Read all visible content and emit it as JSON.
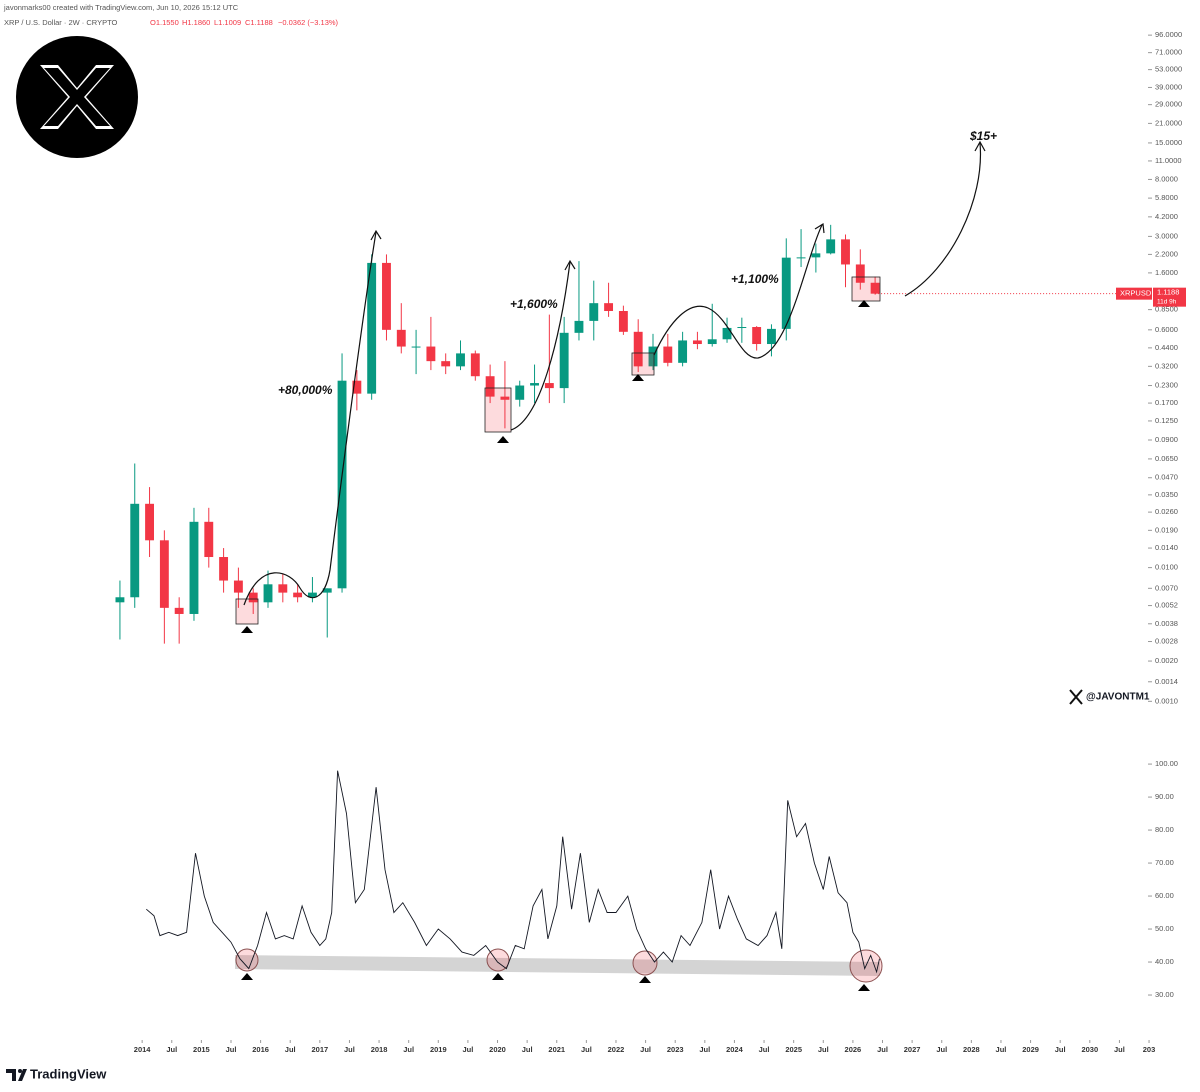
{
  "header": {
    "credit": "javonmarks00 created with TradingView.com, Jun 10, 2026 15:12 UTC",
    "symbol": "XRP / U.S. Dollar · 2W · CRYPTO",
    "ohlc": [
      "O1.1550",
      "H1.1860",
      "L1.1009",
      "C1.1188"
    ],
    "change": "−0.0362 (−3.13%)",
    "handle": "@JAVONTM1",
    "brand": "TradingView"
  },
  "chart_data": [
    {
      "type": "candlestick",
      "log_scale": true,
      "up_color": "#089981",
      "down_color": "#f23645",
      "annotations": [
        "+80,000%",
        "+1,600%",
        "+1,100%",
        "$15+"
      ],
      "price_label": {
        "symbol": "XRPUSD",
        "value": 1.1188,
        "label": "1.1188",
        "countdown": "11d 9h"
      },
      "xlim": [
        2011.6,
        2031.05
      ],
      "ylim": [
        0.00079,
        148
      ],
      "yticks": [
        {
          "value": 96,
          "label": "96.0000"
        },
        {
          "value": 71,
          "label": "71.0000"
        },
        {
          "value": 53,
          "label": "53.0000"
        },
        {
          "value": 39,
          "label": "39.0000"
        },
        {
          "value": 29,
          "label": "29.0000"
        },
        {
          "value": 21,
          "label": "21.0000"
        },
        {
          "value": 15,
          "label": "15.0000"
        },
        {
          "value": 11,
          "label": "11.0000"
        },
        {
          "value": 8,
          "label": "8.0000"
        },
        {
          "value": 5.8,
          "label": "5.8000"
        },
        {
          "value": 4.2,
          "label": "4.2000"
        },
        {
          "value": 3,
          "label": "3.0000"
        },
        {
          "value": 2.2,
          "label": "2.2000"
        },
        {
          "value": 1.6,
          "label": "1.6000"
        },
        {
          "value": 0.85,
          "label": "0.8500"
        },
        {
          "value": 0.6,
          "label": "0.6000"
        },
        {
          "value": 0.44,
          "label": "0.4400"
        },
        {
          "value": 0.32,
          "label": "0.3200"
        },
        {
          "value": 0.23,
          "label": "0.2300"
        },
        {
          "value": 0.17,
          "label": "0.1700"
        },
        {
          "value": 0.125,
          "label": "0.1250"
        },
        {
          "value": 0.09,
          "label": "0.0900"
        },
        {
          "value": 0.065,
          "label": "0.0650"
        },
        {
          "value": 0.047,
          "label": "0.0470"
        },
        {
          "value": 0.035,
          "label": "0.0350"
        },
        {
          "value": 0.026,
          "label": "0.0260"
        },
        {
          "value": 0.019,
          "label": "0.0190"
        },
        {
          "value": 0.014,
          "label": "0.0140"
        },
        {
          "value": 0.01,
          "label": "0.0100"
        },
        {
          "value": 0.007,
          "label": "0.0070"
        },
        {
          "value": 0.0052,
          "label": "0.0052"
        },
        {
          "value": 0.0038,
          "label": "0.0038"
        },
        {
          "value": 0.0028,
          "label": "0.0028"
        },
        {
          "value": 0.002,
          "label": "0.0020"
        },
        {
          "value": 0.0014,
          "label": "0.0014"
        },
        {
          "value": 0.001,
          "label": "0.0010"
        }
      ],
      "x": [
        2013.625,
        2013.875,
        2014.125,
        2014.375,
        2014.625,
        2014.875,
        2015.125,
        2015.375,
        2015.625,
        2015.875,
        2016.125,
        2016.375,
        2016.625,
        2016.875,
        2017.125,
        2017.375,
        2017.625,
        2017.875,
        2018.125,
        2018.375,
        2018.625,
        2018.875,
        2019.125,
        2019.375,
        2019.625,
        2019.875,
        2020.125,
        2020.375,
        2020.625,
        2020.875,
        2021.125,
        2021.375,
        2021.625,
        2021.875,
        2022.125,
        2022.375,
        2022.625,
        2022.875,
        2023.125,
        2023.375,
        2023.625,
        2023.875,
        2024.125,
        2024.375,
        2024.625,
        2024.875,
        2025.125,
        2025.375,
        2025.625,
        2025.875,
        2026.125,
        2026.375
      ],
      "open": [
        0.0055,
        0.006,
        0.03,
        0.016,
        0.005,
        0.0045,
        0.022,
        0.012,
        0.008,
        0.0065,
        0.0055,
        0.0075,
        0.0065,
        0.006,
        0.0065,
        0.007,
        0.25,
        0.2,
        1.9,
        0.6,
        0.45,
        0.45,
        0.35,
        0.32,
        0.4,
        0.27,
        0.19,
        0.18,
        0.23,
        0.24,
        0.22,
        0.57,
        0.7,
        0.95,
        0.83,
        0.58,
        0.32,
        0.45,
        0.34,
        0.5,
        0.47,
        0.51,
        0.62,
        0.63,
        0.47,
        0.61,
        2.08,
        2.09,
        2.24,
        2.85,
        1.85,
        1.35
      ],
      "high": [
        0.008,
        0.06,
        0.04,
        0.019,
        0.006,
        0.028,
        0.028,
        0.014,
        0.01,
        0.007,
        0.0095,
        0.009,
        0.0075,
        0.0085,
        0.007,
        0.4,
        0.3,
        2.2,
        2.2,
        0.95,
        0.6,
        0.75,
        0.4,
        0.5,
        0.42,
        0.33,
        0.35,
        0.25,
        0.33,
        0.78,
        0.75,
        1.96,
        1.4,
        1.35,
        0.91,
        0.72,
        0.56,
        0.56,
        0.58,
        0.58,
        0.94,
        0.74,
        0.74,
        0.64,
        0.66,
        2.9,
        3.4,
        2.65,
        3.66,
        3.1,
        2.4,
        1.5
      ],
      "low": [
        0.0029,
        0.005,
        0.012,
        0.0027,
        0.0027,
        0.004,
        0.01,
        0.0065,
        0.005,
        0.0045,
        0.005,
        0.0055,
        0.0055,
        0.0055,
        0.003,
        0.0065,
        0.15,
        0.18,
        0.5,
        0.4,
        0.28,
        0.3,
        0.28,
        0.3,
        0.25,
        0.17,
        0.11,
        0.16,
        0.17,
        0.17,
        0.17,
        0.5,
        0.5,
        0.75,
        0.55,
        0.29,
        0.3,
        0.32,
        0.32,
        0.43,
        0.45,
        0.48,
        0.48,
        0.42,
        0.38,
        0.5,
        1.77,
        1.61,
        2.2,
        1.25,
        1.2,
        1.1
      ],
      "close": [
        0.006,
        0.03,
        0.016,
        0.005,
        0.0045,
        0.022,
        0.012,
        0.008,
        0.0065,
        0.0055,
        0.0075,
        0.0065,
        0.006,
        0.0065,
        0.007,
        0.25,
        0.2,
        1.9,
        0.6,
        0.45,
        0.45,
        0.35,
        0.32,
        0.4,
        0.27,
        0.19,
        0.18,
        0.23,
        0.24,
        0.22,
        0.57,
        0.7,
        0.95,
        0.83,
        0.58,
        0.32,
        0.45,
        0.34,
        0.5,
        0.47,
        0.51,
        0.62,
        0.63,
        0.47,
        0.61,
        2.08,
        2.09,
        2.24,
        2.85,
        1.85,
        1.35,
        1.1188
      ]
    },
    {
      "type": "line",
      "color": "#131722",
      "xlim": [
        2011.6,
        2031.05
      ],
      "xticks": [
        2014,
        {
          "value": 2014.5,
          "label": "Jul"
        },
        2015,
        {
          "value": 2015.5,
          "label": "Jul"
        },
        2016,
        {
          "value": 2016.5,
          "label": "Jul"
        },
        2017,
        {
          "value": 2017.5,
          "label": "Jul"
        },
        2018,
        {
          "value": 2018.5,
          "label": "Jul"
        },
        2019,
        {
          "value": 2019.5,
          "label": "Jul"
        },
        2020,
        {
          "value": 2020.5,
          "label": "Jul"
        },
        2021,
        {
          "value": 2021.5,
          "label": "Jul"
        },
        2022,
        {
          "value": 2022.5,
          "label": "Jul"
        },
        2023,
        {
          "value": 2023.5,
          "label": "Jul"
        },
        2024,
        {
          "value": 2024.5,
          "label": "Jul"
        },
        2025,
        {
          "value": 2025.5,
          "label": "Jul"
        },
        2026,
        {
          "value": 2026.5,
          "label": "Jul"
        },
        2027,
        {
          "value": 2027.5,
          "label": "Jul"
        },
        2028,
        {
          "value": 2028.5,
          "label": "Jul"
        },
        2029,
        {
          "value": 2029.5,
          "label": "Jul"
        },
        2030,
        {
          "value": 2030.5,
          "label": "Jul"
        },
        {
          "value": 2031,
          "label": "203"
        }
      ],
      "ylim": [
        19.4,
        107.3
      ],
      "yticks": [
        {
          "value": 100,
          "label": "100.00"
        },
        {
          "value": 90,
          "label": "90.00"
        },
        {
          "value": 80,
          "label": "80.00"
        },
        {
          "value": 70,
          "label": "70.00"
        },
        {
          "value": 60,
          "label": "60.00"
        },
        {
          "value": 50,
          "label": "50.00"
        },
        {
          "value": 40,
          "label": "40.00"
        },
        {
          "value": 30,
          "label": "30.00"
        }
      ],
      "x": [
        2014.07,
        2014.2,
        2014.3,
        2014.45,
        2014.6,
        2014.75,
        2014.9,
        2015.05,
        2015.2,
        2015.35,
        2015.5,
        2015.65,
        2015.8,
        2015.95,
        2016.1,
        2016.25,
        2016.4,
        2016.55,
        2016.7,
        2016.85,
        2017.0,
        2017.1,
        2017.2,
        2017.3,
        2017.45,
        2017.6,
        2017.75,
        2017.95,
        2018.1,
        2018.25,
        2018.4,
        2018.6,
        2018.8,
        2019.0,
        2019.2,
        2019.4,
        2019.6,
        2019.8,
        2020.0,
        2020.15,
        2020.3,
        2020.45,
        2020.6,
        2020.75,
        2020.85,
        2021.0,
        2021.1,
        2021.25,
        2021.4,
        2021.55,
        2021.7,
        2021.85,
        2022.0,
        2022.2,
        2022.35,
        2022.5,
        2022.65,
        2022.8,
        2022.95,
        2023.1,
        2023.25,
        2023.45,
        2023.6,
        2023.75,
        2023.9,
        2024.05,
        2024.2,
        2024.4,
        2024.55,
        2024.7,
        2024.8,
        2024.9,
        2025.05,
        2025.2,
        2025.35,
        2025.5,
        2025.6,
        2025.75,
        2025.9,
        2026.0,
        2026.1,
        2026.2,
        2026.3,
        2026.4,
        2026.45
      ],
      "values": [
        56,
        54,
        48,
        49,
        48,
        49,
        73,
        60,
        52,
        49,
        46,
        41,
        38,
        45,
        55,
        47,
        48,
        47,
        57,
        49,
        45,
        47,
        55,
        98,
        85,
        58,
        62,
        93,
        68,
        55,
        58,
        52,
        45,
        50,
        47,
        43,
        42,
        45,
        40,
        38,
        45,
        44,
        57,
        62,
        47,
        57,
        78,
        56,
        73,
        52,
        62,
        55,
        55,
        60,
        50,
        44,
        40,
        43,
        40,
        48,
        45,
        52,
        68,
        50,
        60,
        53,
        47,
        45,
        48,
        55,
        44,
        89,
        78,
        82,
        70,
        62,
        72,
        61,
        58,
        49,
        46,
        38,
        42,
        37,
        41
      ]
    }
  ]
}
